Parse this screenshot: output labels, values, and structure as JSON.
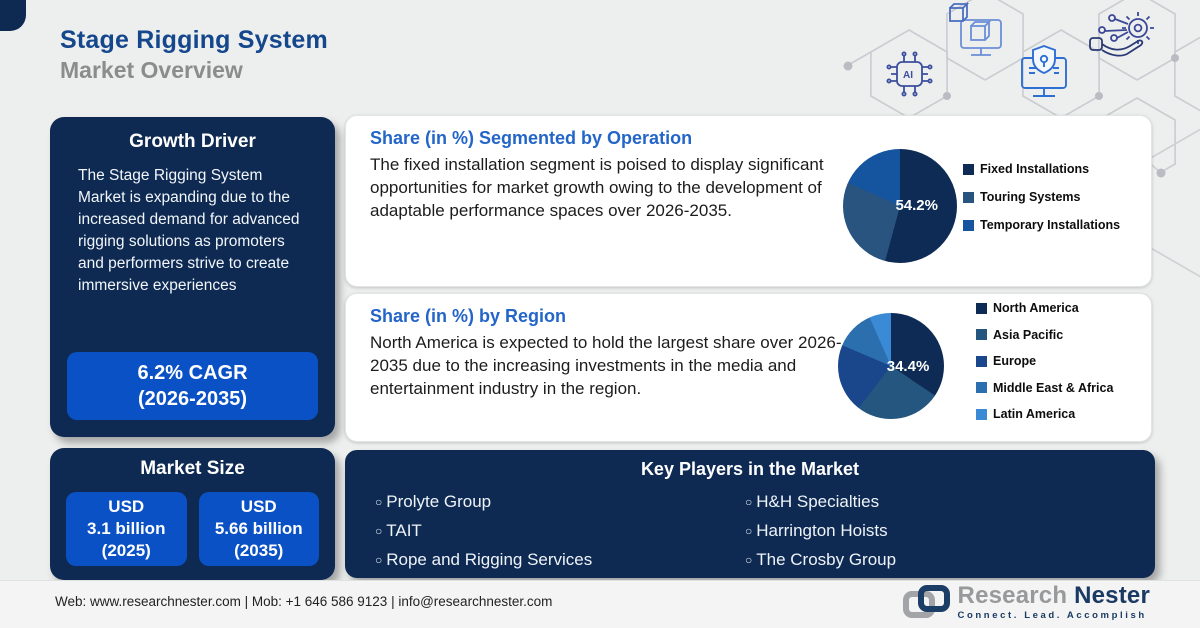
{
  "header": {
    "title": "Stage Rigging System",
    "subtitle": "Market Overview"
  },
  "growth_driver": {
    "title": "Growth Driver",
    "body": "The Stage Rigging System Market is expanding due to the increased demand for advanced rigging solutions as promoters and performers strive to create immersive experiences",
    "cagr_line1": "6.2% CAGR",
    "cagr_line2": "(2026-2035)"
  },
  "market_size": {
    "title": "Market Size",
    "values": [
      {
        "l1": "USD",
        "l2": "3.1 billion",
        "l3": "(2025)"
      },
      {
        "l1": "USD",
        "l2": "5.66 billion",
        "l3": "(2035)"
      }
    ]
  },
  "cards": [
    {
      "heading": "Share (in %) Segmented by Operation",
      "body": "The fixed installation segment is poised to display significant opportunities for market growth owing to the development of adaptable performance spaces over 2026-2035."
    },
    {
      "heading": "Share (in %) by Region",
      "body": "North America is expected to hold the largest share over 2026-2035 due to the increasing investments in the media and entertainment industry in the region."
    }
  ],
  "chart_data": [
    {
      "type": "pie",
      "title": "Share (in %) Segmented by Operation",
      "labels": [
        "Fixed Installations",
        "Touring Systems",
        "Temporary Installations"
      ],
      "values": [
        54.2,
        27.5,
        18.3
      ],
      "colors": [
        "#0e2b55",
        "#28547f",
        "#15549f"
      ],
      "annotation": "54.2%",
      "legend_position": "right"
    },
    {
      "type": "pie",
      "title": "Share (in %) by Region",
      "labels": [
        "North America",
        "Asia Pacific",
        "Europe",
        "Middle East & Africa",
        "Latin America"
      ],
      "values": [
        34.4,
        26.0,
        21.0,
        12.0,
        6.6
      ],
      "colors": [
        "#0e2b55",
        "#25567f",
        "#1a478c",
        "#2b6fae",
        "#3b8ad5"
      ],
      "annotation": "34.4%",
      "legend_position": "right"
    }
  ],
  "key_players": {
    "title": "Key Players in the Market",
    "bullet": "○",
    "col1": [
      "Prolyte Group",
      "TAIT",
      "Rope and Rigging Services"
    ],
    "col2": [
      "H&H Specialties",
      "Harrington Hoists",
      "The Crosby Group"
    ]
  },
  "footer": {
    "contact": "Web: www.researchnester.com | Mob: +1 646 586 9123 | info@researchnester.com",
    "brand_primary": "Research",
    "brand_secondary": "Nester",
    "tagline": "Connect. Lead. Accomplish"
  },
  "decorations": {
    "ai_chip_label": "AI"
  }
}
